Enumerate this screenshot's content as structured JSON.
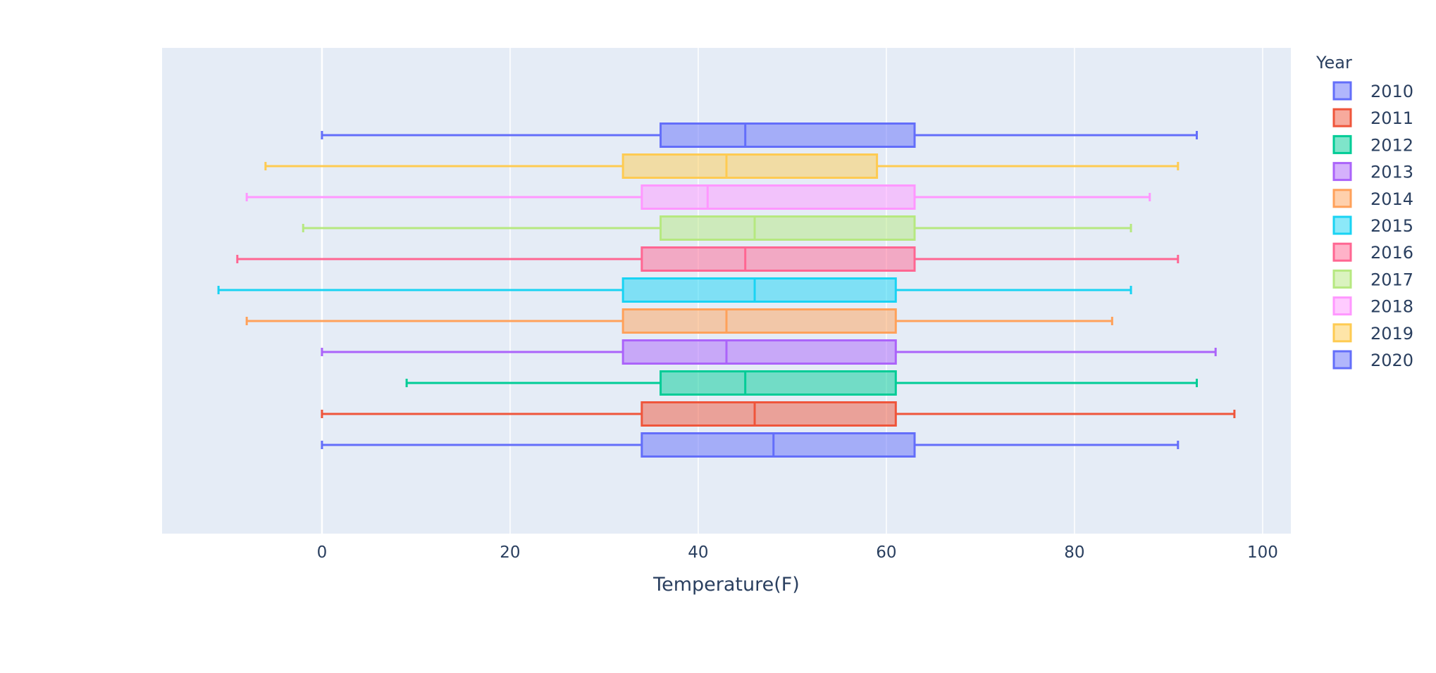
{
  "chart_data": {
    "type": "box",
    "orientation": "horizontal",
    "xlabel": "Temperature(F)",
    "xlim": [
      -17,
      103
    ],
    "x_ticks": [
      0,
      20,
      40,
      60,
      80,
      100
    ],
    "grid": true,
    "legend": {
      "title": "Year",
      "placement": "right"
    },
    "series": [
      {
        "name": "2010",
        "color": "#636efa",
        "min": 0,
        "q1": 34,
        "median": 48,
        "q3": 63,
        "max": 91
      },
      {
        "name": "2011",
        "color": "#EF553B",
        "min": 0,
        "q1": 34,
        "median": 46,
        "q3": 61,
        "max": 97
      },
      {
        "name": "2012",
        "color": "#00cc96",
        "min": 9,
        "q1": 36,
        "median": 45,
        "q3": 61,
        "max": 93
      },
      {
        "name": "2013",
        "color": "#ab63fa",
        "min": 0,
        "q1": 32,
        "median": 43,
        "q3": 61,
        "max": 95
      },
      {
        "name": "2014",
        "color": "#FFA15A",
        "min": -8,
        "q1": 32,
        "median": 43,
        "q3": 61,
        "max": 84
      },
      {
        "name": "2015",
        "color": "#19d3f3",
        "min": -11,
        "q1": 32,
        "median": 46,
        "q3": 61,
        "max": 86
      },
      {
        "name": "2016",
        "color": "#FF6692",
        "min": -9,
        "q1": 34,
        "median": 45,
        "q3": 63,
        "max": 91
      },
      {
        "name": "2017",
        "color": "#B6E880",
        "min": -2,
        "q1": 36,
        "median": 46,
        "q3": 63,
        "max": 86
      },
      {
        "name": "2018",
        "color": "#FF97FF",
        "min": -8,
        "q1": 34,
        "median": 41,
        "q3": 63,
        "max": 88
      },
      {
        "name": "2019",
        "color": "#FECB52",
        "min": -6,
        "q1": 32,
        "median": 43,
        "q3": 59,
        "max": 91
      },
      {
        "name": "2020",
        "color": "#636efa",
        "min": 0,
        "q1": 36,
        "median": 45,
        "q3": 63,
        "max": 93
      }
    ]
  }
}
